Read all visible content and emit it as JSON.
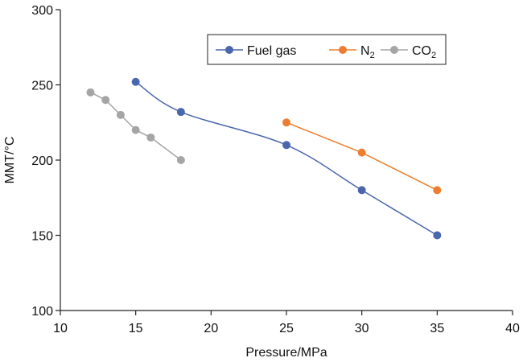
{
  "chart_data": {
    "type": "line",
    "title": "",
    "xlabel": "Pressure/MPa",
    "ylabel": "MMT/°C",
    "xlim": [
      10,
      40
    ],
    "ylim": [
      100,
      300
    ],
    "xticks": [
      10,
      15,
      20,
      25,
      30,
      35,
      40
    ],
    "yticks": [
      100,
      150,
      200,
      250,
      300
    ],
    "grid": false,
    "legend_position": "top-right",
    "series": [
      {
        "name": "Fuel gas",
        "label_main": "Fuel gas",
        "label_sub": "",
        "color": "#4a66ac",
        "smooth": true,
        "x": [
          15,
          18,
          25,
          30,
          35
        ],
        "y": [
          252,
          232,
          210,
          180,
          150
        ]
      },
      {
        "name": "N2",
        "label_main": "N",
        "label_sub": "2",
        "color": "#ed7d31",
        "smooth": false,
        "x": [
          25,
          30,
          35
        ],
        "y": [
          225,
          205,
          180
        ]
      },
      {
        "name": "CO2",
        "label_main": "CO",
        "label_sub": "2",
        "color": "#a5a5a5",
        "smooth": false,
        "x": [
          12,
          13,
          14,
          15,
          16,
          18
        ],
        "y": [
          245,
          240,
          230,
          220,
          215,
          200
        ]
      }
    ]
  }
}
